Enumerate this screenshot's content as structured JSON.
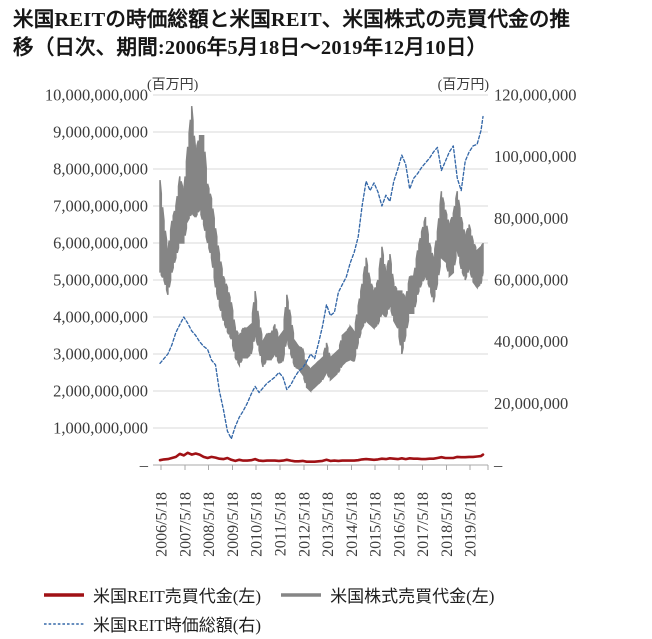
{
  "title": {
    "line1": "米国REITの時価総額と米国REIT、米国株式の売買代金の推",
    "line2": "移（日次、期間:2006年5月18日～2019年12月10日）"
  },
  "axes": {
    "left_unit": "(百万円)",
    "right_unit": "(百万円)",
    "left_ticks": [
      "10,000,000,000",
      "9,000,000,000",
      "8,000,000,000",
      "7,000,000,000",
      "6,000,000,000",
      "5,000,000,000",
      "4,000,000,000",
      "3,000,000,000",
      "2,000,000,000",
      "1,000,000,000",
      "–"
    ],
    "right_ticks": [
      "120,000,000",
      "100,000,000",
      "80,000,000",
      "60,000,000",
      "40,000,000",
      "20,000,000",
      "–"
    ],
    "x_ticks": [
      "2006/5/18",
      "2007/5/18",
      "2008/5/18",
      "2009/5/18",
      "2010/5/18",
      "2011/5/18",
      "2012/5/18",
      "2013/5/18",
      "2014/5/18",
      "2015/5/18",
      "2016/5/18",
      "2017/5/18",
      "2018/5/18",
      "2019/5/18"
    ]
  },
  "legend": {
    "items": [
      {
        "label": "米国REIT売買代金(左)",
        "color": "#a01115",
        "style": "solid",
        "weight": 3.6
      },
      {
        "label": "米国株式売買代金(左)",
        "color": "#858585",
        "style": "solid",
        "weight": 3.6
      },
      {
        "label": "米国REIT時価総額(右)",
        "color": "#3568a8",
        "style": "dashed",
        "weight": 1.6
      }
    ]
  },
  "colors": {
    "gridline": "#d9d9d9",
    "axis_line": "#a8a8a8",
    "tick_label": "#3c3c3c",
    "title_text": "#161616"
  },
  "chart_data": {
    "type": "line",
    "title": "米国REITの時価総額と米国REIT、米国株式の売買代金の推移（日次、期間:2006年5月18日～2019年12月10日）",
    "left_axis": {
      "label": "(百万円)",
      "min": 0,
      "max": 10000000000,
      "tick_step": 1000000000
    },
    "right_axis": {
      "label": "(百万円)",
      "min": 0,
      "max": 120000000,
      "tick_step": 20000000
    },
    "grid": true,
    "legend_position": "bottom",
    "dates": [
      "2006/5",
      "2006/7",
      "2006/9",
      "2006/11",
      "2007/1",
      "2007/3",
      "2007/5",
      "2007/7",
      "2007/9",
      "2007/11",
      "2008/1",
      "2008/3",
      "2008/5",
      "2008/7",
      "2008/9",
      "2008/11",
      "2009/1",
      "2009/3",
      "2009/5",
      "2009/7",
      "2009/9",
      "2009/11",
      "2010/1",
      "2010/3",
      "2010/5",
      "2010/7",
      "2010/9",
      "2010/11",
      "2011/1",
      "2011/3",
      "2011/5",
      "2011/7",
      "2011/9",
      "2011/11",
      "2012/1",
      "2012/3",
      "2012/5",
      "2012/7",
      "2012/9",
      "2012/11",
      "2013/1",
      "2013/3",
      "2013/5",
      "2013/7",
      "2013/9",
      "2013/11",
      "2014/1",
      "2014/3",
      "2014/5",
      "2014/7",
      "2014/9",
      "2014/11",
      "2015/1",
      "2015/3",
      "2015/5",
      "2015/7",
      "2015/9",
      "2015/11",
      "2016/1",
      "2016/3",
      "2016/5",
      "2016/7",
      "2016/9",
      "2016/11",
      "2017/1",
      "2017/3",
      "2017/5",
      "2017/7",
      "2017/9",
      "2017/11",
      "2018/1",
      "2018/3",
      "2018/5",
      "2018/7",
      "2018/9",
      "2018/11",
      "2019/1",
      "2019/3",
      "2019/5",
      "2019/7",
      "2019/9",
      "2019/11",
      "2019/12"
    ],
    "series": [
      {
        "name": "米国株式売買代金(左)",
        "axis": "left",
        "line": "solid",
        "color": "#858585",
        "render": "hilo-band",
        "low": [
          5200000000,
          5000000000,
          4600000000,
          5200000000,
          5600000000,
          6000000000,
          6000000000,
          6600000000,
          6800000000,
          6700000000,
          6900000000,
          6500000000,
          6000000000,
          5600000000,
          4800000000,
          4300000000,
          3900000000,
          3600000000,
          3400000000,
          2900000000,
          2700000000,
          2900000000,
          2900000000,
          3000000000,
          3500000000,
          3100000000,
          2650000000,
          2850000000,
          2850000000,
          3000000000,
          2750000000,
          2800000000,
          3400000000,
          3000000000,
          2650000000,
          2600000000,
          2450000000,
          2100000000,
          2000000000,
          2100000000,
          2200000000,
          2300000000,
          2500000000,
          2300000000,
          2400000000,
          2500000000,
          2700000000,
          2800000000,
          2850000000,
          2800000000,
          3300000000,
          3700000000,
          3900000000,
          3800000000,
          3700000000,
          3800000000,
          4100000000,
          4000000000,
          4300000000,
          3900000000,
          3700000000,
          3000000000,
          3500000000,
          4100000000,
          4100000000,
          4600000000,
          4900000000,
          5100000000,
          4800000000,
          4400000000,
          4900000000,
          5600000000,
          5500000000,
          5100000000,
          5200000000,
          5800000000,
          5300000000,
          5000000000,
          5300000000,
          4950000000,
          4800000000,
          4900000000,
          5200000000
        ],
        "high": [
          7700000000,
          6600000000,
          5800000000,
          6600000000,
          7000000000,
          7800000000,
          7400000000,
          8600000000,
          9700000000,
          8500000000,
          8900000000,
          8900000000,
          7600000000,
          7200000000,
          6400000000,
          5700000000,
          5100000000,
          4800000000,
          4400000000,
          3700000000,
          3500000000,
          3700000000,
          3700000000,
          3800000000,
          4700000000,
          3900000000,
          3350000000,
          3550000000,
          3550000000,
          3800000000,
          3450000000,
          3600000000,
          4600000000,
          4000000000,
          3350000000,
          3200000000,
          3150000000,
          2700000000,
          2600000000,
          2700000000,
          2800000000,
          2900000000,
          3300000000,
          2900000000,
          3000000000,
          3100000000,
          3500000000,
          3600000000,
          3750000000,
          3600000000,
          4300000000,
          4900000000,
          5600000000,
          5000000000,
          4700000000,
          5000000000,
          5900000000,
          5200000000,
          5700000000,
          4900000000,
          4700000000,
          4700000000,
          4500000000,
          5100000000,
          5100000000,
          5800000000,
          6300000000,
          6700000000,
          6000000000,
          5600000000,
          6300000000,
          7400000000,
          6900000000,
          6500000000,
          6800000000,
          7400000000,
          6700000000,
          6200000000,
          6500000000,
          6050000000,
          5800000000,
          5900000000,
          6000000000
        ]
      },
      {
        "name": "米国REIT時価総額(右)",
        "axis": "right",
        "line": "dashed",
        "color": "#3568a8",
        "render": "line",
        "values": [
          33000000,
          34500000,
          36000000,
          39000000,
          43000000,
          45500000,
          48000000,
          46000000,
          43500000,
          42000000,
          40000000,
          38500000,
          37500000,
          34000000,
          32500000,
          24000000,
          18000000,
          11000000,
          8500000,
          12500000,
          15500000,
          17500000,
          20000000,
          23000000,
          25500000,
          23500000,
          25000000,
          26500000,
          27500000,
          28500000,
          30000000,
          28500000,
          24500000,
          26000000,
          28500000,
          30500000,
          31500000,
          33500000,
          36000000,
          34500000,
          39500000,
          45000000,
          52000000,
          48500000,
          49500000,
          56000000,
          58500000,
          61000000,
          65500000,
          69000000,
          74000000,
          84000000,
          92000000,
          89000000,
          91500000,
          88500000,
          84000000,
          87500000,
          85500000,
          92000000,
          96000000,
          100500000,
          97500000,
          89500000,
          93000000,
          94500000,
          96500000,
          98000000,
          99500000,
          101500000,
          103000000,
          95500000,
          98500000,
          101500000,
          103500000,
          93000000,
          89000000,
          98500000,
          101500000,
          103500000,
          104000000,
          108500000,
          113000000
        ]
      },
      {
        "name": "米国REIT売買代金(左)",
        "axis": "left",
        "line": "solid",
        "color": "#a01115",
        "render": "line",
        "values": [
          130000000,
          150000000,
          160000000,
          190000000,
          220000000,
          300000000,
          260000000,
          330000000,
          280000000,
          310000000,
          280000000,
          220000000,
          190000000,
          220000000,
          200000000,
          170000000,
          160000000,
          190000000,
          140000000,
          110000000,
          140000000,
          120000000,
          120000000,
          130000000,
          160000000,
          120000000,
          110000000,
          120000000,
          120000000,
          120000000,
          110000000,
          120000000,
          140000000,
          120000000,
          100000000,
          100000000,
          110000000,
          90000000,
          90000000,
          90000000,
          100000000,
          110000000,
          140000000,
          110000000,
          120000000,
          110000000,
          120000000,
          120000000,
          120000000,
          120000000,
          130000000,
          150000000,
          160000000,
          150000000,
          140000000,
          150000000,
          170000000,
          160000000,
          180000000,
          170000000,
          160000000,
          180000000,
          160000000,
          180000000,
          170000000,
          170000000,
          160000000,
          160000000,
          170000000,
          170000000,
          190000000,
          210000000,
          190000000,
          190000000,
          190000000,
          220000000,
          210000000,
          210000000,
          220000000,
          220000000,
          230000000,
          240000000,
          280000000
        ]
      }
    ]
  }
}
